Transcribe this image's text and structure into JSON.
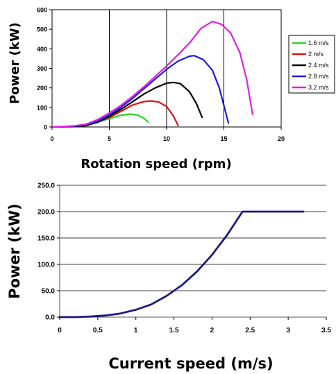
{
  "chart_data": [
    {
      "type": "line",
      "title": "",
      "xlabel": "Rotation speed (rpm)",
      "ylabel": "Power (kW)",
      "xlim": [
        0,
        20
      ],
      "ylim": [
        0,
        600
      ],
      "xticks": [
        "0",
        "5",
        "10",
        "15",
        "20"
      ],
      "yticks": [
        "0",
        "100",
        "200",
        "300",
        "400",
        "500",
        "600"
      ],
      "grid": "vertical",
      "legend": "right",
      "series": [
        {
          "name": "1.6 m/s",
          "color": "#22dd22",
          "points": [
            [
              0,
              0
            ],
            [
              1,
              1
            ],
            [
              2,
              4
            ],
            [
              3,
              11
            ],
            [
              4,
              25
            ],
            [
              5,
              43
            ],
            [
              6,
              60
            ],
            [
              6.8,
              66
            ],
            [
              7.5,
              60
            ],
            [
              8,
              45
            ],
            [
              8.4,
              25
            ]
          ]
        },
        {
          "name": "2 m/s",
          "color": "#dd1111",
          "points": [
            [
              0,
              0
            ],
            [
              1,
              1
            ],
            [
              2,
              4
            ],
            [
              3,
              10
            ],
            [
              4,
              26
            ],
            [
              5,
              48
            ],
            [
              6,
              80
            ],
            [
              7,
              112
            ],
            [
              8,
              130
            ],
            [
              8.6,
              133
            ],
            [
              9.3,
              128
            ],
            [
              10,
              105
            ],
            [
              10.6,
              55
            ],
            [
              11,
              8
            ]
          ]
        },
        {
          "name": "2.4 m/s",
          "color": "#000000",
          "points": [
            [
              0,
              0
            ],
            [
              2,
              2
            ],
            [
              3,
              7
            ],
            [
              4,
              25
            ],
            [
              5,
              55
            ],
            [
              6,
              90
            ],
            [
              7,
              128
            ],
            [
              8,
              168
            ],
            [
              9,
              200
            ],
            [
              10,
              224
            ],
            [
              10.6,
              228
            ],
            [
              11.2,
              222
            ],
            [
              12,
              180
            ],
            [
              12.6,
              120
            ],
            [
              13.1,
              50
            ]
          ]
        },
        {
          "name": "2.8 m/s",
          "color": "#1a1add",
          "points": [
            [
              0,
              0
            ],
            [
              2,
              5
            ],
            [
              3,
              12
            ],
            [
              4,
              30
            ],
            [
              5,
              62
            ],
            [
              6,
              100
            ],
            [
              7,
              145
            ],
            [
              8,
              195
            ],
            [
              9,
              245
            ],
            [
              10,
              295
            ],
            [
              11,
              337
            ],
            [
              12,
              362
            ],
            [
              12.4,
              365
            ],
            [
              13.2,
              345
            ],
            [
              14,
              290
            ],
            [
              14.6,
              200
            ],
            [
              15,
              110
            ],
            [
              15.4,
              20
            ]
          ]
        },
        {
          "name": "3.2 m/s",
          "color": "#e020e0",
          "points": [
            [
              0,
              0
            ],
            [
              1,
              2
            ],
            [
              2,
              6
            ],
            [
              3,
              15
            ],
            [
              4,
              38
            ],
            [
              5,
              72
            ],
            [
              6,
              110
            ],
            [
              7,
              155
            ],
            [
              8,
              205
            ],
            [
              9,
              258
            ],
            [
              10,
              312
            ],
            [
              11,
              370
            ],
            [
              12,
              430
            ],
            [
              13,
              505
            ],
            [
              14,
              540
            ],
            [
              14.8,
              525
            ],
            [
              15.6,
              480
            ],
            [
              16.4,
              380
            ],
            [
              17,
              240
            ],
            [
              17.5,
              65
            ]
          ]
        }
      ]
    },
    {
      "type": "line",
      "title": "",
      "xlabel": "Current speed (m/s)",
      "ylabel": "Power (kW)",
      "xlim": [
        0,
        3.5
      ],
      "ylim": [
        0,
        250
      ],
      "xticks": [
        "0",
        "0.5",
        "1",
        "1.5",
        "2",
        "2.5",
        "3",
        "3.5"
      ],
      "yticks": [
        "0.0",
        "50.0",
        "100.0",
        "150.0",
        "200.0",
        "250.0"
      ],
      "grid": "horizontal",
      "legend": "none",
      "series": [
        {
          "name": "",
          "color": "#1a1a80",
          "points": [
            [
              0,
              0
            ],
            [
              0.2,
              0
            ],
            [
              0.4,
              1
            ],
            [
              0.6,
              3
            ],
            [
              0.8,
              7
            ],
            [
              1.0,
              14
            ],
            [
              1.2,
              24
            ],
            [
              1.4,
              40
            ],
            [
              1.6,
              60
            ],
            [
              1.8,
              86
            ],
            [
              2.0,
              118
            ],
            [
              2.2,
              156
            ],
            [
              2.4,
              200
            ],
            [
              2.6,
              200
            ],
            [
              2.8,
              200
            ],
            [
              3.0,
              200
            ],
            [
              3.2,
              200
            ]
          ]
        }
      ]
    }
  ]
}
